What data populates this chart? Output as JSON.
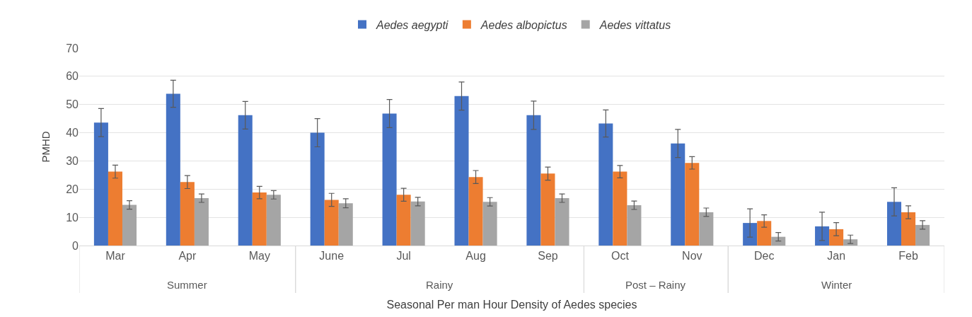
{
  "chart_data": {
    "type": "bar",
    "xlabel": "Seasonal Per man Hour Density of Aedes species",
    "ylabel": "PMHD",
    "categories": [
      "Mar",
      "Apr",
      "May",
      "June",
      "Jul",
      "Aug",
      "Sep",
      "Oct",
      "Nov",
      "Dec",
      "Jan",
      "Feb"
    ],
    "series": [
      {
        "name": "Aedes aegypti",
        "color": "#4472c4",
        "values": [
          43.6,
          53.8,
          46.2,
          40,
          46.8,
          53,
          46.2,
          43.3,
          36.2,
          8,
          6.8,
          15.5
        ],
        "errors": [
          5,
          4.8,
          4.9,
          5,
          5,
          5,
          5,
          4.8,
          5,
          5,
          5,
          5
        ]
      },
      {
        "name": "Aedes albopictus",
        "color": "#ed7d31",
        "values": [
          26.2,
          22.5,
          18.8,
          16.2,
          18,
          24.3,
          25.5,
          26.2,
          29.3,
          8.7,
          5.8,
          11.8
        ],
        "errors": [
          2.3,
          2.3,
          2.2,
          2.3,
          2.3,
          2.3,
          2.3,
          2.2,
          2.2,
          2.2,
          2.3,
          2.3
        ]
      },
      {
        "name": "Aedes vittatus",
        "color": "#a5a5a5",
        "values": [
          14.4,
          16.8,
          18,
          15,
          15.6,
          15.5,
          16.8,
          14.3,
          11.8,
          3.1,
          2.2,
          7.3
        ],
        "errors": [
          1.5,
          1.5,
          1.5,
          1.6,
          1.5,
          1.5,
          1.5,
          1.5,
          1.5,
          1.5,
          1.5,
          1.5
        ]
      }
    ],
    "annotations": [
      "Summer",
      "Rainy",
      "Post – Rainy",
      "Winter"
    ],
    "ylim": [
      0,
      70
    ],
    "yticks": [
      0,
      10,
      20,
      30,
      40,
      50,
      60,
      70
    ],
    "grid": "y",
    "legend": "top"
  }
}
